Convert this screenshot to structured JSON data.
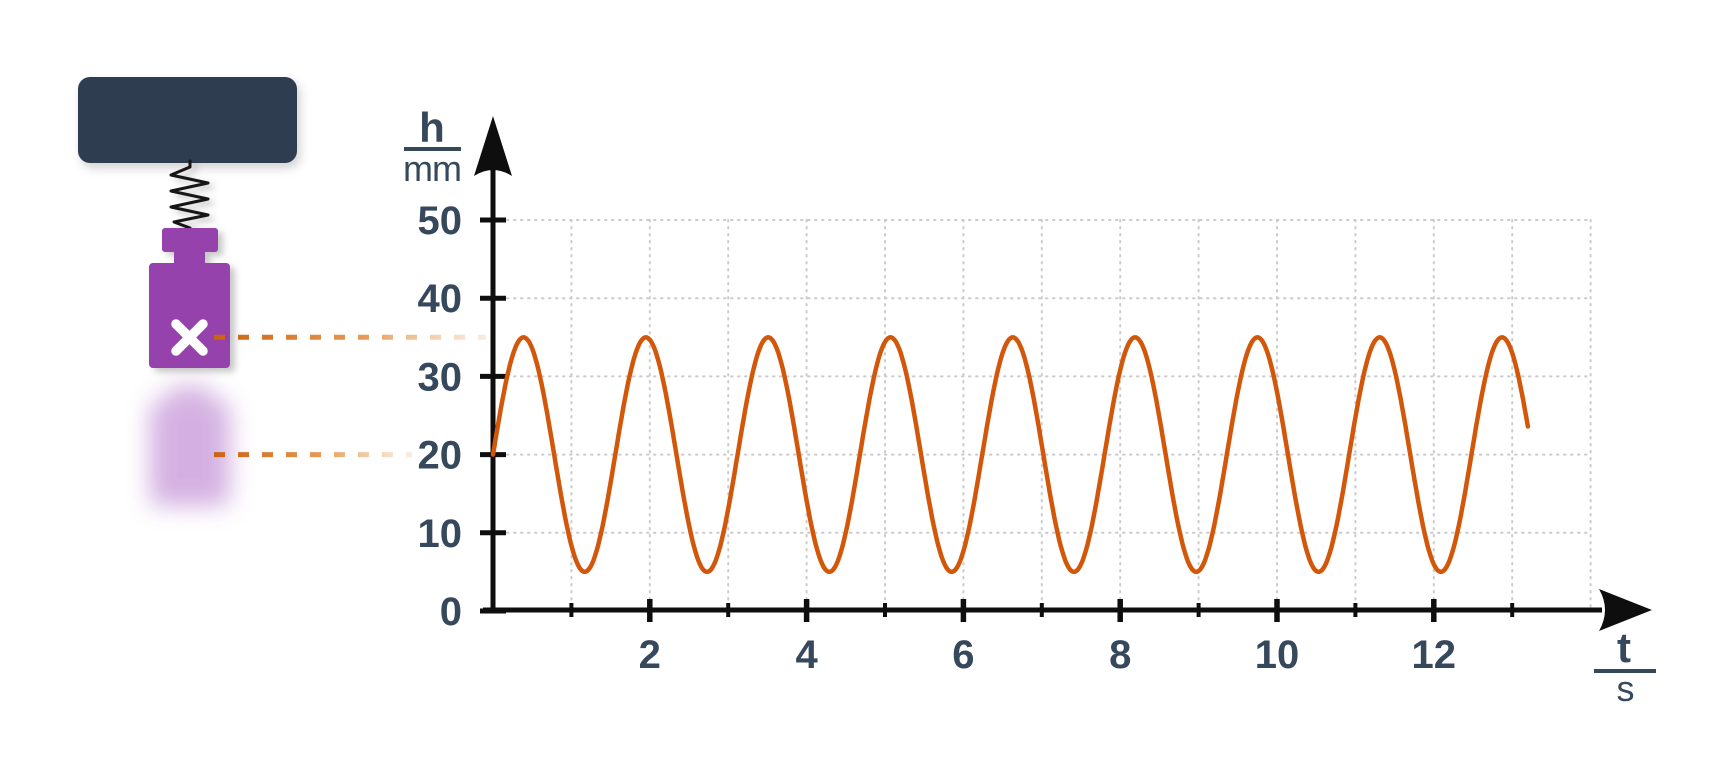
{
  "colors": {
    "text": "#36485c",
    "axis": "#0e0e0e",
    "curve": "#d2570a",
    "grid": "#cbcbcb",
    "ceiling": "#2e3e4f",
    "weight": "#9642ac",
    "ghost": "#a964c4",
    "dash_start": "#cc6212",
    "dash_end": "#f3ddc4",
    "cross": "#ffffff",
    "spring": "#141414"
  },
  "illustration": {
    "description": "weight hanging from a spring attached to a ceiling mount, with a blurred ghost showing the lower oscillation position",
    "parts": [
      "ceiling-mount",
      "spring",
      "hanging-weight",
      "weight-ghost-lower-position"
    ],
    "cross_symbol": "✕"
  },
  "chart_data": {
    "type": "line",
    "title": "",
    "ylabel": {
      "numerator": "h",
      "denominator": "mm"
    },
    "xlabel": {
      "numerator": "t",
      "denominator": "s"
    },
    "xlim": [
      0,
      14
    ],
    "ylim": [
      0,
      55
    ],
    "y_ticks": [
      0,
      10,
      20,
      30,
      40,
      50
    ],
    "x_ticks_major": [
      2,
      4,
      6,
      8,
      10,
      12
    ],
    "x_ticks_minor": [
      1,
      3,
      5,
      7,
      9,
      11,
      13
    ],
    "x_gridlines": [
      1,
      2,
      3,
      4,
      5,
      6,
      7,
      8,
      9,
      10,
      11,
      12,
      13,
      14
    ],
    "y_gridlines": [
      10,
      20,
      30,
      40,
      50
    ],
    "grid": "dotted",
    "legend": "none",
    "series": [
      {
        "name": "weight-height-oscillation",
        "shape": "sine",
        "model": "h(t) = 20 + 15·sin(2π·t/1.56)",
        "midline_mm": 20,
        "amplitude_mm": 15,
        "period_s": 1.56,
        "t_start_s": 0,
        "t_end_s": 13.2,
        "max_mm": 35,
        "min_mm": 5,
        "starts_at_mm": 20,
        "color": "#d2570a"
      }
    ],
    "reference_levels_mm": [
      35,
      20
    ]
  }
}
